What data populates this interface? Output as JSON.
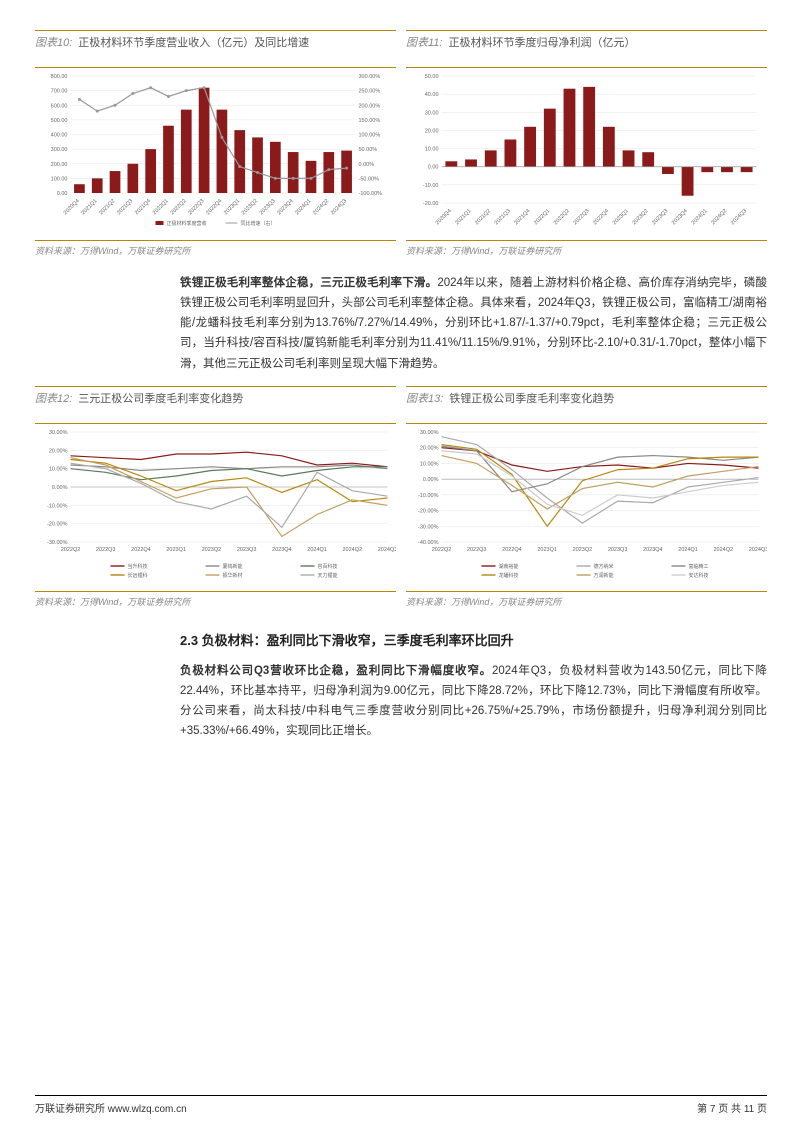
{
  "charts": {
    "c10": {
      "label": "图表10:",
      "title": "正极材料环节季度营业收入（亿元）及同比增速",
      "type": "bar+line",
      "categories": [
        "2020Q4",
        "2021Q1",
        "2021Q2",
        "2021Q3",
        "2021Q4",
        "2022Q1",
        "2022Q2",
        "2022Q3",
        "2022Q4",
        "2023Q1",
        "2023Q2",
        "2023Q3",
        "2023Q4",
        "2024Q1",
        "2024Q2",
        "2024Q3"
      ],
      "bars": [
        60,
        100,
        150,
        200,
        300,
        460,
        570,
        720,
        570,
        430,
        380,
        350,
        280,
        220,
        280,
        290
      ],
      "line": [
        220,
        180,
        200,
        240,
        260,
        230,
        250,
        260,
        90,
        -10,
        -30,
        -50,
        -50,
        -50,
        -20,
        -15
      ],
      "bar_color": "#8b1a1a",
      "line_color": "#999",
      "ylim_left": [
        0,
        800
      ],
      "ytick_left": [
        0,
        100,
        200,
        300,
        400,
        500,
        600,
        700,
        800
      ],
      "ylim_right": [
        -100,
        300
      ],
      "ytick_right": [
        -100,
        -50,
        0,
        50,
        100,
        150,
        200,
        250,
        300
      ],
      "legend": [
        "正极材料季度营收",
        "同比增速（右）"
      ],
      "background": "#ffffff",
      "grid_color": "#e5e5e5",
      "source": "资料来源：万得Wind，万联证券研究所"
    },
    "c11": {
      "label": "图表11:",
      "title": "正极材料环节季度归母净利润（亿元）",
      "type": "bar",
      "categories": [
        "2020Q4",
        "2021Q1",
        "2021Q2",
        "2021Q3",
        "2021Q4",
        "2022Q1",
        "2022Q2",
        "2022Q3",
        "2022Q4",
        "2023Q1",
        "2023Q2",
        "2023Q3",
        "2023Q4",
        "2024Q1",
        "2024Q2",
        "2024Q3"
      ],
      "bars": [
        3,
        4,
        9,
        15,
        22,
        32,
        43,
        44,
        22,
        9,
        8,
        -4,
        -16,
        -3,
        -3,
        -3
      ],
      "bar_color": "#8b1a1a",
      "ylim": [
        -20,
        50
      ],
      "ytick": [
        -20,
        -10,
        0,
        10,
        20,
        30,
        40,
        50
      ],
      "background": "#ffffff",
      "grid_color": "#e5e5e5",
      "source": "资料来源：万得Wind，万联证券研究所"
    },
    "c12": {
      "label": "图表12:",
      "title": "三元正极公司季度毛利率变化趋势",
      "type": "line",
      "categories": [
        "2022Q2",
        "2022Q3",
        "2022Q4",
        "2023Q1",
        "2023Q2",
        "2023Q3",
        "2023Q4",
        "2024Q1",
        "2024Q2",
        "2024Q3"
      ],
      "series": [
        {
          "name": "当升科技",
          "color": "#8b1a1a",
          "values": [
            17,
            16,
            15,
            18,
            18,
            19,
            17,
            12,
            13,
            11
          ]
        },
        {
          "name": "厦钨新能",
          "color": "#888",
          "values": [
            12,
            11,
            9,
            10,
            11,
            10,
            11,
            11,
            12,
            10
          ]
        },
        {
          "name": "容百科技",
          "color": "#5a7a5a",
          "values": [
            10,
            8,
            4,
            6,
            9,
            10,
            6,
            9,
            11,
            11
          ]
        },
        {
          "name": "长远锂科",
          "color": "#b8860b",
          "values": [
            15,
            13,
            6,
            -2,
            3,
            5,
            -3,
            4,
            -8,
            -6
          ]
        },
        {
          "name": "振华新材",
          "color": "#c0a060",
          "values": [
            16,
            12,
            3,
            -6,
            -1,
            0,
            -27,
            -15,
            -7,
            -10
          ]
        },
        {
          "name": "天力锂能",
          "color": "#aaa",
          "values": [
            13,
            10,
            2,
            -8,
            -12,
            -5,
            -22,
            8,
            -2,
            -5
          ]
        }
      ],
      "ylim": [
        -30,
        30
      ],
      "ytick": [
        -30,
        -20,
        -10,
        0,
        10,
        20,
        30
      ],
      "background": "#ffffff",
      "grid_color": "#e5e5e5",
      "source": "资料来源：万得Wind，万联证券研究所"
    },
    "c13": {
      "label": "图表13:",
      "title": "铁锂正极公司季度毛利率变化趋势",
      "type": "line",
      "categories": [
        "2022Q2",
        "2022Q3",
        "2022Q4",
        "2023Q1",
        "2023Q2",
        "2023Q3",
        "2023Q4",
        "2024Q1",
        "2024Q2",
        "2024Q3"
      ],
      "series": [
        {
          "name": "湖南裕能",
          "color": "#8b1a1a",
          "values": [
            20,
            18,
            9,
            5,
            8,
            9,
            7,
            10,
            9,
            7
          ]
        },
        {
          "name": "德方纳米",
          "color": "#aaa",
          "values": [
            27,
            22,
            6,
            -12,
            -28,
            -14,
            -15,
            -5,
            -2,
            1
          ]
        },
        {
          "name": "富临精工",
          "color": "#888",
          "values": [
            21,
            18,
            -8,
            -3,
            8,
            14,
            15,
            14,
            12,
            14
          ]
        },
        {
          "name": "龙蟠科技",
          "color": "#b8860b",
          "values": [
            22,
            19,
            3,
            -30,
            -1,
            6,
            7,
            13,
            14,
            14
          ]
        },
        {
          "name": "万润新能",
          "color": "#c0a060",
          "values": [
            15,
            10,
            -4,
            -19,
            -6,
            -2,
            -5,
            2,
            5,
            8
          ]
        },
        {
          "name": "安达科技",
          "color": "#ccc",
          "values": [
            18,
            16,
            2,
            -16,
            -23,
            -10,
            -12,
            -8,
            -4,
            -2
          ]
        }
      ],
      "ylim": [
        -40,
        30
      ],
      "ytick": [
        -40,
        -30,
        -20,
        -10,
        0,
        10,
        20,
        30
      ],
      "background": "#ffffff",
      "grid_color": "#e5e5e5",
      "source": "资料来源：万得Wind，万联证券研究所"
    }
  },
  "para1": "铁锂正极毛利率整体企稳，三元正极毛利率下滑。",
  "para1_body": "2024年以来，随着上游材料价格企稳、高价库存消纳完毕，磷酸铁锂正极公司毛利率明显回升，头部公司毛利率整体企稳。具体来看，2024年Q3，铁锂正极公司，富临精工/湖南裕能/龙蟠科技毛利率分别为13.76%/7.27%/14.49%，分别环比+1.87/-1.37/+0.79pct，毛利率整体企稳；三元正极公司，当升科技/容百科技/厦钨新能毛利率分别为11.41%/11.15%/9.91%，分别环比-2.10/+0.31/-1.70pct，整体小幅下滑，其他三元正极公司毛利率则呈现大幅下滑趋势。",
  "section_heading": "2.3 负极材料：盈利同比下滑收窄，三季度毛利率环比回升",
  "para2": "负极材料公司Q3营收环比企稳，盈利同比下滑幅度收窄。",
  "para2_body": "2024年Q3，负极材料营收为143.50亿元，同比下降22.44%，环比基本持平，归母净利润为9.00亿元，同比下降28.72%，环比下降12.73%，同比下滑幅度有所收窄。分公司来看，尚太科技/中科电气三季度营收分别同比+26.75%/+25.79%，市场份额提升，归母净利润分别同比+35.33%/+66.49%，实现同比正增长。",
  "footer_left": "万联证券研究所  www.wlzq.com.cn",
  "footer_right": "第 7 页 共 11 页"
}
